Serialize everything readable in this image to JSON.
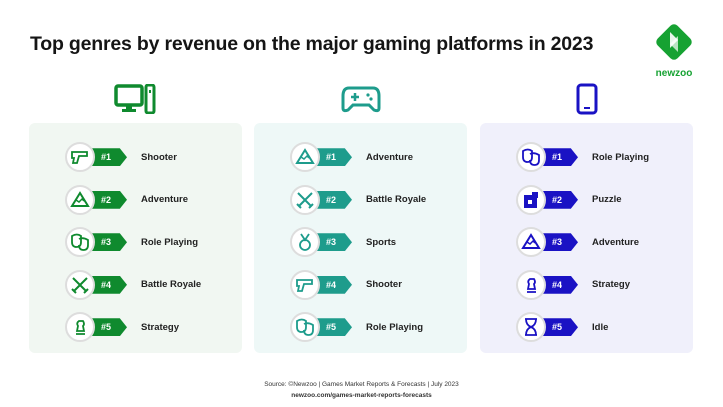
{
  "title": "Top genres by revenue on the major gaming platforms in 2023",
  "logo": "newzoo",
  "columns": [
    {
      "platform": "PC",
      "icon": "desktop-pc-icon",
      "color": "#0f8a2e",
      "bg": "#f1f7f2",
      "items": [
        {
          "rank": "#1",
          "label": "Shooter",
          "icon": "gun"
        },
        {
          "rank": "#2",
          "label": "Adventure",
          "icon": "mountain"
        },
        {
          "rank": "#3",
          "label": "Role Playing",
          "icon": "masks"
        },
        {
          "rank": "#4",
          "label": "Battle Royale",
          "icon": "swords"
        },
        {
          "rank": "#5",
          "label": "Strategy",
          "icon": "chess"
        }
      ]
    },
    {
      "platform": "Console",
      "icon": "gamepad-icon",
      "color": "#1e9c8c",
      "bg": "#eef8f7",
      "items": [
        {
          "rank": "#1",
          "label": "Adventure",
          "icon": "mountain"
        },
        {
          "rank": "#2",
          "label": "Battle Royale",
          "icon": "swords"
        },
        {
          "rank": "#3",
          "label": "Sports",
          "icon": "medal"
        },
        {
          "rank": "#4",
          "label": "Shooter",
          "icon": "gun"
        },
        {
          "rank": "#5",
          "label": "Role Playing",
          "icon": "masks"
        }
      ]
    },
    {
      "platform": "Mobile",
      "icon": "smartphone-icon",
      "color": "#1a12c4",
      "bg": "#f0f0fb",
      "items": [
        {
          "rank": "#1",
          "label": "Role Playing",
          "icon": "masks"
        },
        {
          "rank": "#2",
          "label": "Puzzle",
          "icon": "puzzle"
        },
        {
          "rank": "#3",
          "label": "Adventure",
          "icon": "mountain"
        },
        {
          "rank": "#4",
          "label": "Strategy",
          "icon": "chess"
        },
        {
          "rank": "#5",
          "label": "Idle",
          "icon": "hourglass"
        }
      ]
    }
  ],
  "footer": {
    "source": "Source: ©Newzoo | Games Market Reports & Forecasts | July 2023",
    "url": "newzoo.com/games-market-reports-forecasts"
  }
}
